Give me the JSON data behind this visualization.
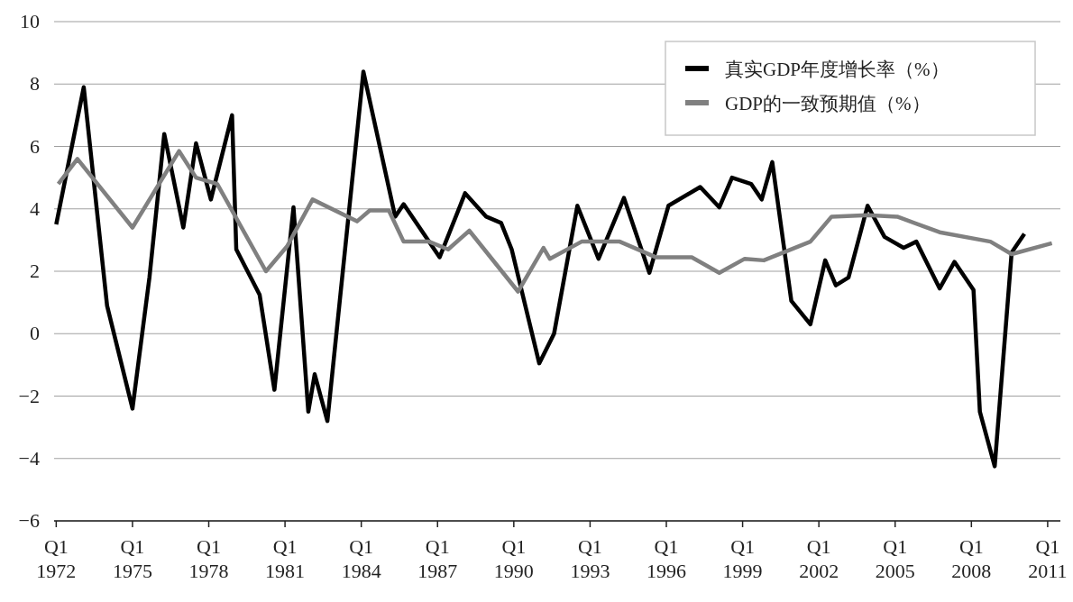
{
  "chart_data": {
    "type": "line",
    "xlim": [
      "1971-12",
      "2011-07"
    ],
    "ylim": [
      -6,
      10
    ],
    "xticks": [
      {
        "value": "1972-01",
        "label": "Q1\n1972"
      },
      {
        "value": "1975-01",
        "label": "Q1\n1975"
      },
      {
        "value": "1978-01",
        "label": "Q1\n1978"
      },
      {
        "value": "1981-01",
        "label": "Q1\n1981"
      },
      {
        "value": "1984-01",
        "label": "Q1\n1984"
      },
      {
        "value": "1987-01",
        "label": "Q1\n1987"
      },
      {
        "value": "1990-01",
        "label": "Q1\n1990"
      },
      {
        "value": "1993-01",
        "label": "Q1\n1993"
      },
      {
        "value": "1996-01",
        "label": "Q1\n1996"
      },
      {
        "value": "1999-01",
        "label": "Q1\n1999"
      },
      {
        "value": "2002-01",
        "label": "Q1\n2002"
      },
      {
        "value": "2005-01",
        "label": "Q1\n2005"
      },
      {
        "value": "2008-01",
        "label": "Q1\n2008"
      },
      {
        "value": "2011-01",
        "label": "Q1\n2011"
      }
    ],
    "yticks": [
      10,
      8,
      6,
      4,
      2,
      0,
      {
        "value": -2,
        "label": "−2"
      },
      {
        "value": -4,
        "label": "−4"
      },
      {
        "value": -6,
        "label": "−6"
      }
    ],
    "grid": "y",
    "legend": "top right",
    "line_style": "solid",
    "marker": "none",
    "series": [
      {
        "name": "真实GDP年度增长率（%）",
        "color": "#000000",
        "x": [
          "1972-01",
          "1973-02",
          "1974-01",
          "1975-01",
          "1975-09",
          "1976-04",
          "1977-01",
          "1977-07",
          "1978-02",
          "1978-12",
          "1979-02",
          "1980-01",
          "1980-08",
          "1981-05",
          "1981-12",
          "1982-03",
          "1982-09",
          "1984-02",
          "1985-05",
          "1985-09",
          "1987-02",
          "1988-02",
          "1988-12",
          "1989-07",
          "1989-12",
          "1991-01",
          "1991-08",
          "1992-07",
          "1993-05",
          "1994-05",
          "1995-05",
          "1996-02",
          "1997-05",
          "1998-02",
          "1998-08",
          "1999-05",
          "1999-10",
          "2000-03",
          "2000-12",
          "2001-09",
          "2002-04",
          "2002-09",
          "2003-03",
          "2003-12",
          "2004-08",
          "2005-05",
          "2005-11",
          "2006-10",
          "2007-05",
          "2008-02",
          "2008-05",
          "2008-12",
          "2009-08",
          "2010-02"
        ],
        "values": [
          3.5,
          7.9,
          0.9,
          -2.4,
          1.8,
          6.4,
          3.4,
          6.1,
          4.3,
          7.0,
          2.7,
          1.25,
          -1.8,
          4.05,
          -2.5,
          -1.3,
          -2.8,
          8.4,
          3.75,
          4.15,
          2.45,
          4.5,
          3.75,
          3.55,
          2.7,
          -0.95,
          0.0,
          4.1,
          2.4,
          4.35,
          1.95,
          4.1,
          4.7,
          4.05,
          5.0,
          4.8,
          4.3,
          5.5,
          1.05,
          0.3,
          2.35,
          1.55,
          1.8,
          4.1,
          3.1,
          2.75,
          2.95,
          1.45,
          2.3,
          1.4,
          -2.5,
          -4.25,
          2.6,
          3.2
        ]
      },
      {
        "name": "GDP的一致预期值（%）",
        "color": "#808080",
        "x": [
          "1972-02",
          "1972-11",
          "1975-01",
          "1976-11",
          "1977-07",
          "1978-05",
          "1980-04",
          "1981-02",
          "1982-02",
          "1983-11",
          "1984-05",
          "1985-02",
          "1985-09",
          "1986-09",
          "1987-06",
          "1988-04",
          "1990-03",
          "1991-03",
          "1991-06",
          "1992-09",
          "1994-03",
          "1995-08",
          "1997-01",
          "1998-02",
          "1999-02",
          "1999-11",
          "2001-09",
          "2002-07",
          "2003-12",
          "2005-02",
          "2006-10",
          "2008-10",
          "2009-08",
          "2011-03"
        ],
        "values": [
          4.8,
          5.6,
          3.4,
          5.85,
          5.0,
          4.8,
          2.0,
          2.8,
          4.3,
          3.6,
          3.95,
          3.95,
          2.95,
          2.95,
          2.7,
          3.3,
          1.35,
          2.75,
          2.4,
          2.95,
          2.95,
          2.45,
          2.45,
          1.95,
          2.4,
          2.35,
          2.95,
          3.75,
          3.8,
          3.75,
          3.25,
          2.95,
          2.55,
          2.9
        ]
      }
    ]
  }
}
